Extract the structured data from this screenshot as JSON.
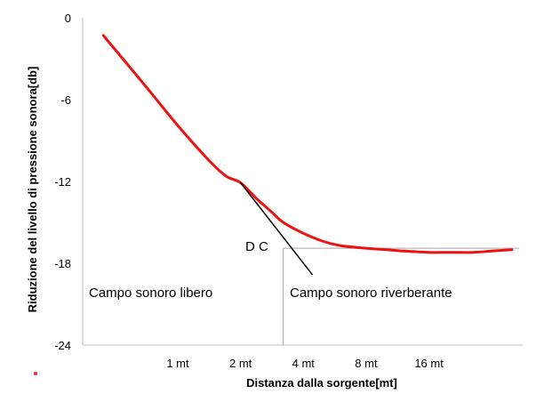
{
  "chart_data": {
    "type": "line",
    "xlabel": "Distanza dalla sorgente[mt]",
    "ylabel": "Riduzione del livello di pressione sonora[db]",
    "x_scale": "log2",
    "x_ticks": [
      1,
      2,
      4,
      8,
      16
    ],
    "x_tick_labels": [
      "1 mt",
      "2 mt",
      "4 mt",
      "8 mt",
      "16 mt"
    ],
    "xlim": [
      0.35,
      45
    ],
    "y_ticks": [
      0,
      -6,
      -12,
      -18,
      -24
    ],
    "y_tick_labels": [
      "0",
      "-6",
      "-12",
      "-18",
      "-24"
    ],
    "ylim": [
      -24,
      0
    ],
    "grid": false,
    "colors": {
      "curve": "#ee1111",
      "free_field_line": "#000000",
      "guide": "#a6a6a6",
      "marker": "#e03030"
    },
    "series": [
      {
        "style": "curve",
        "x": [
          0.44,
          0.7,
          1,
          1.4,
          1.7,
          2,
          2.4,
          2.8,
          3.2,
          4,
          5,
          6,
          8,
          10,
          12,
          16,
          20,
          26,
          32,
          40
        ],
        "y": [
          -1.3,
          -5.0,
          -7.9,
          -10.4,
          -11.6,
          -12.1,
          -13.3,
          -14.2,
          -15.0,
          -15.8,
          -16.4,
          -16.7,
          -16.9,
          -17.0,
          -17.1,
          -17.2,
          -17.2,
          -17.2,
          -17.1,
          -17.0
        ]
      },
      {
        "style": "free_field_line",
        "x": [
          2,
          4.4
        ],
        "y": [
          -12.1,
          -18.8
        ]
      }
    ],
    "critical_distance": {
      "label": "D C",
      "x": 3.2,
      "y": -16.9
    },
    "annotations": [
      "Campo sonoro libero",
      "Campo sonoro riverberante"
    ]
  }
}
